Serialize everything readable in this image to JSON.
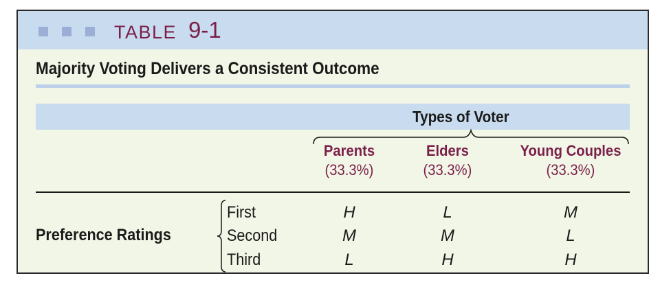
{
  "table_label": {
    "word": "TABLE",
    "number": "9-1"
  },
  "title": "Majority Voting Delivers a Consistent Outcome",
  "band_label": "Types of Voter",
  "columns": [
    {
      "name": "Parents",
      "share": "(33.3%)"
    },
    {
      "name": "Elders",
      "share": "(33.3%)"
    },
    {
      "name": "Young Couples",
      "share": "(33.3%)"
    }
  ],
  "row_group_label": "Preference Ratings",
  "ranks": [
    "First",
    "Second",
    "Third"
  ],
  "cells": [
    [
      "H",
      "L",
      "M"
    ],
    [
      "M",
      "M",
      "L"
    ],
    [
      "L",
      "H",
      "H"
    ]
  ],
  "colors": {
    "accent": "#7a1f4b",
    "header_bg": "#c9dbee",
    "panel_bg": "#f2f6e6",
    "square": "#9aaed6"
  }
}
